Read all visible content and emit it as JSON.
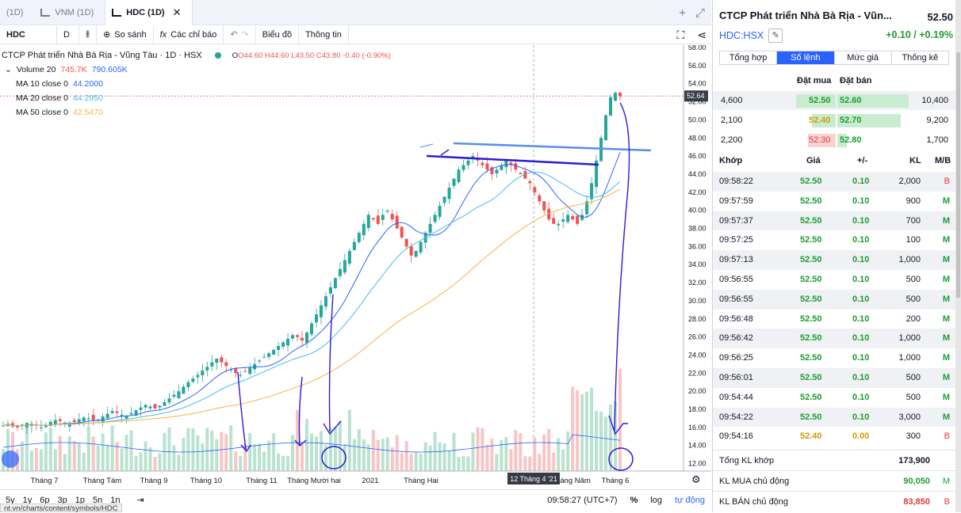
{
  "tabs": [
    {
      "label": "(1D)",
      "active": false
    },
    {
      "label": "VNM (1D)",
      "active": false
    },
    {
      "label": "HDC (1D)",
      "active": true
    }
  ],
  "toolbar": {
    "symbol": "HDC",
    "interval": "D",
    "compare": "So sánh",
    "indicators": "Các chỉ báo",
    "chart_type": "Biểu đồ",
    "info": "Thông tin"
  },
  "legend": {
    "title": "CTCP Phát triển Nhà Bà Rịa - Vũng Tàu · 1D · HSX",
    "open": "O44.60",
    "high": "H44.60",
    "low": "L43.50",
    "close": "C43.80",
    "change": "-0.40 (-0.90%)",
    "volume_label": "Volume 20",
    "volume_val1": "745.7K",
    "volume_val2": "790.605K",
    "ma10_label": "MA 10 close 0",
    "ma10_val": "44.2000",
    "ma20_label": "MA 20 close 0",
    "ma20_val": "44.2950",
    "ma50_label": "MA 50 close 0",
    "ma50_val": "42.5470"
  },
  "chart_data": {
    "type": "candlestick",
    "ylim": [
      11,
      58
    ],
    "price_ticks": [
      "58.00",
      "56.00",
      "54.00",
      "52.00",
      "50.00",
      "48.00",
      "46.00",
      "44.00",
      "42.00",
      "40.00",
      "38.00",
      "36.00",
      "34.00",
      "32.00",
      "30.00",
      "28.00",
      "26.00",
      "24.00",
      "22.00",
      "20.00",
      "18.00",
      "16.00",
      "14.00",
      "12.00"
    ],
    "last_price_label": "52.64",
    "x_labels": [
      "Tháng 7",
      "Tháng Tám",
      "Tháng 9",
      "Tháng 10",
      "Tháng 11",
      "Tháng Mười hai",
      "2021",
      "Tháng Hai",
      "Tháng Năm",
      "Tháng 6"
    ],
    "crosshair_label": "12 Tháng 4 '21",
    "colors": {
      "up": "#26a69a",
      "down": "#ef5350",
      "ma10": "#2962ff",
      "ma20": "#42bde9",
      "ma50": "#f5b53f",
      "annotation": "#2b1bd6"
    },
    "series_close": [
      16.2,
      16.4,
      16.1,
      16.0,
      16.3,
      16.5,
      16.4,
      16.2,
      16.0,
      16.3,
      16.6,
      16.8,
      16.7,
      16.5,
      16.4,
      16.6,
      16.9,
      17.1,
      17.0,
      16.8,
      16.9,
      17.2,
      17.5,
      17.8,
      17.6,
      17.4,
      17.3,
      17.6,
      17.9,
      18.2,
      18.5,
      18.3,
      18.1,
      18.4,
      18.8,
      19.2,
      19.6,
      20.0,
      20.5,
      21.0,
      21.4,
      21.8,
      22.3,
      22.7,
      23.2,
      23.6,
      23.2,
      22.8,
      22.4,
      22.0,
      21.8,
      22.2,
      22.6,
      23.0,
      23.4,
      23.8,
      24.2,
      24.6,
      25.0,
      25.4,
      25.8,
      26.2,
      26.0,
      25.6,
      26.5,
      27.5,
      28.5,
      29.5,
      30.5,
      31.5,
      32.5,
      33.5,
      34.5,
      35.5,
      36.5,
      37.5,
      38.5,
      39.5,
      39.0,
      38.5,
      39.5,
      40.0,
      39.0,
      38.0,
      37.0,
      36.0,
      35.0,
      35.5,
      36.5,
      37.5,
      38.5,
      39.5,
      40.5,
      41.5,
      42.5,
      43.5,
      44.5,
      45.0,
      45.5,
      46.0,
      45.5,
      45.0,
      44.5,
      44.0,
      44.5,
      45.0,
      45.5,
      45.0,
      44.5,
      44.0,
      43.5,
      43.0,
      42.0,
      41.0,
      40.0,
      39.0,
      38.5,
      38.5,
      39.0,
      39.5,
      39.0,
      38.5,
      39.5,
      41.0,
      43.0,
      45.5,
      48.0,
      50.5,
      52.5,
      53.0,
      52.6
    ]
  },
  "bottom": {
    "ranges": [
      "5y",
      "1y",
      "6p",
      "3p",
      "1p",
      "5n",
      "1n"
    ],
    "time": "09:58:27 (UTC+7)",
    "percent": "%",
    "log": "log",
    "auto": "tự động",
    "status_url": "nt.vn/charts/content/symbols/HDC"
  },
  "panel": {
    "company": "CTCP Phát triển Nhà Bà Rịa - Vũn...",
    "price": "52.50",
    "symbol": "HDC:HSX",
    "change": "+0.10 / +0.19%",
    "tabs": [
      "Tổng hợp",
      "Sổ lệnh",
      "Mức giá",
      "Thống kê"
    ],
    "active_tab": 1,
    "ob_buy_header": "Đặt mua",
    "ob_sell_header": "Đặt bán",
    "orderbook": [
      {
        "buy_vol": "4,600",
        "buy_price": "52.50",
        "sell_price": "52.60",
        "sell_vol": "10,400",
        "buy_color": "g"
      },
      {
        "buy_vol": "2,100",
        "buy_price": "52.40",
        "sell_price": "52.70",
        "sell_vol": "9,200",
        "buy_color": "y"
      },
      {
        "buy_vol": "2,200",
        "buy_price": "52.30",
        "sell_price": "52.80",
        "sell_vol": "1,700",
        "buy_color": "r"
      }
    ],
    "trade_headers": [
      "Khớp",
      "Giá",
      "+/-",
      "KL",
      "M/B"
    ],
    "trades": [
      {
        "time": "09:58:22",
        "price": "52.50",
        "chg": "0.10",
        "vol": "2,000",
        "side": "B"
      },
      {
        "time": "09:57:59",
        "price": "52.50",
        "chg": "0.10",
        "vol": "900",
        "side": "M"
      },
      {
        "time": "09:57:37",
        "price": "52.50",
        "chg": "0.10",
        "vol": "700",
        "side": "M"
      },
      {
        "time": "09:57:25",
        "price": "52.50",
        "chg": "0.10",
        "vol": "100",
        "side": "M"
      },
      {
        "time": "09:57:13",
        "price": "52.50",
        "chg": "0.10",
        "vol": "1,000",
        "side": "M"
      },
      {
        "time": "09:56:55",
        "price": "52.50",
        "chg": "0.10",
        "vol": "500",
        "side": "M"
      },
      {
        "time": "09:56:55",
        "price": "52.50",
        "chg": "0.10",
        "vol": "500",
        "side": "M"
      },
      {
        "time": "09:56:48",
        "price": "52.50",
        "chg": "0.10",
        "vol": "200",
        "side": "M"
      },
      {
        "time": "09:56:42",
        "price": "52.50",
        "chg": "0.10",
        "vol": "1,000",
        "side": "M"
      },
      {
        "time": "09:56:25",
        "price": "52.50",
        "chg": "0.10",
        "vol": "1,000",
        "side": "M"
      },
      {
        "time": "09:56:01",
        "price": "52.50",
        "chg": "0.10",
        "vol": "500",
        "side": "M"
      },
      {
        "time": "09:54:44",
        "price": "52.50",
        "chg": "0.10",
        "vol": "500",
        "side": "M"
      },
      {
        "time": "09:54:22",
        "price": "52.50",
        "chg": "0.10",
        "vol": "3,000",
        "side": "M"
      },
      {
        "time": "09:54:16",
        "price": "52.40",
        "chg": "0.00",
        "vol": "300",
        "side": "B"
      }
    ],
    "total_label": "Tổng KL khớp",
    "total_value": "173,900",
    "buy_active_label": "KL MUA chủ động",
    "buy_active_value": "90,050",
    "buy_active_side": "M",
    "sell_active_label": "KL BÁN chủ động",
    "sell_active_value": "83,850",
    "sell_active_side": "B"
  }
}
